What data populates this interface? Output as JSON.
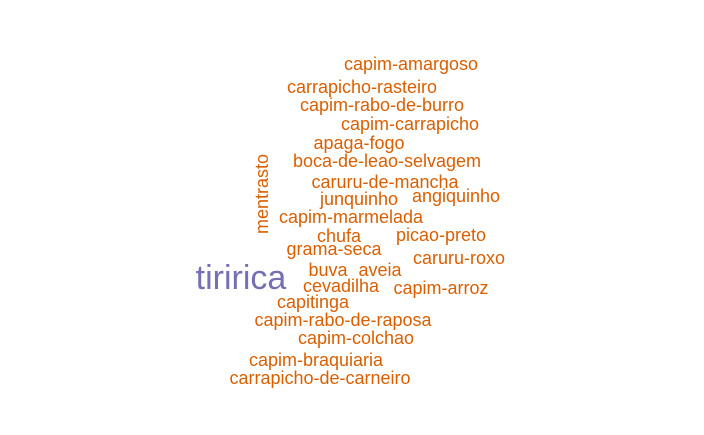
{
  "colors": {
    "primary": "#7570b3",
    "secondary": "#d95f02"
  },
  "words": [
    "capim-amargoso",
    "carrapicho-rasteiro",
    "capim-rabo-de-burro",
    "capim-carrapicho",
    "apaga-fogo",
    "boca-de-leao-selvagem",
    "caruru-de-mancha",
    "junquinho",
    "angiquinho",
    "capim-marmelada",
    "chufa",
    "picao-preto",
    "grama-seca",
    "caruru-roxo",
    "buva",
    "aveia",
    "cevadilha",
    "capim-arroz",
    "capitinga",
    "capim-rabo-de-raposa",
    "capim-colchao",
    "capim-braquiaria",
    "carrapicho-de-carneiro",
    "mentrasto",
    "tiririca"
  ]
}
